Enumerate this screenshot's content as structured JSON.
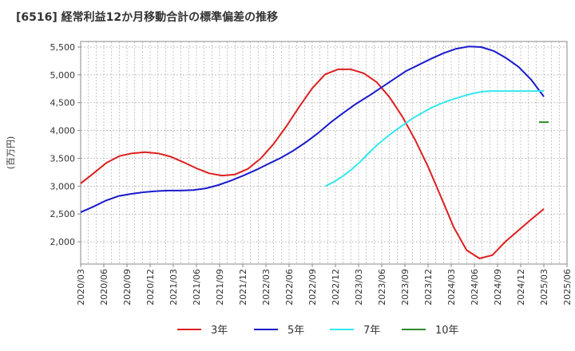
{
  "chart_data": {
    "type": "line",
    "title": "[6516]  経常利益12か月移動合計の標準偏差の推移",
    "ylabel": "(百万円)",
    "xlabel": "",
    "ylim": [
      1600,
      5600
    ],
    "yticks": [
      2000,
      2500,
      3000,
      3500,
      4000,
      4500,
      5000,
      5500
    ],
    "ytick_labels": [
      "2,000",
      "2,500",
      "3,000",
      "3,500",
      "4,000",
      "4,500",
      "5,000",
      "5,500"
    ],
    "x_labels": [
      "2020/03",
      "2020/06",
      "2020/09",
      "2020/12",
      "2021/03",
      "2021/06",
      "2021/09",
      "2021/12",
      "2022/03",
      "2022/06",
      "2022/09",
      "2022/12",
      "2023/03",
      "2023/06",
      "2023/09",
      "2023/12",
      "2024/03",
      "2024/06",
      "2024/09",
      "2024/12",
      "2025/03",
      "2025/06"
    ],
    "grid": true,
    "legend_position": "bottom",
    "series": [
      {
        "name": "3年",
        "color": "#dd1f1f",
        "values": [
          3050,
          3230,
          3420,
          3540,
          3590,
          3610,
          3590,
          3530,
          3430,
          3320,
          3230,
          3190,
          3210,
          3310,
          3500,
          3760,
          4080,
          4430,
          4760,
          5010,
          5100,
          5100,
          5030,
          4870,
          4600,
          4250,
          3830,
          3350,
          2810,
          2260,
          1850,
          1700,
          1760,
          2000,
          2200,
          2400,
          2590
        ]
      },
      {
        "name": "5年",
        "color": "#1a1acc",
        "values": [
          2530,
          2630,
          2740,
          2820,
          2860,
          2890,
          2910,
          2920,
          2920,
          2930,
          2960,
          3020,
          3100,
          3190,
          3290,
          3400,
          3510,
          3640,
          3790,
          3960,
          4150,
          4320,
          4480,
          4620,
          4770,
          4920,
          5070,
          5180,
          5290,
          5390,
          5470,
          5510,
          5500,
          5430,
          5300,
          5140,
          4910,
          4610
        ]
      },
      {
        "name": "7年",
        "color": "#33e8ee",
        "values": [
          null,
          null,
          null,
          null,
          null,
          null,
          null,
          null,
          null,
          null,
          null,
          null,
          null,
          null,
          null,
          null,
          null,
          null,
          null,
          null,
          null,
          null,
          null,
          null,
          null,
          null,
          null,
          null,
          3000,
          3080,
          3180,
          3300,
          3440,
          3600,
          3750,
          3880,
          4000,
          4110,
          4220,
          4310,
          4400,
          4470,
          4530,
          4580,
          4630,
          4670,
          4700,
          4710,
          4710,
          4710,
          4710,
          4710,
          4710,
          4710
        ]
      },
      {
        "name": "10年",
        "color": "#2e8b2e",
        "values": [
          4150
        ]
      }
    ]
  }
}
